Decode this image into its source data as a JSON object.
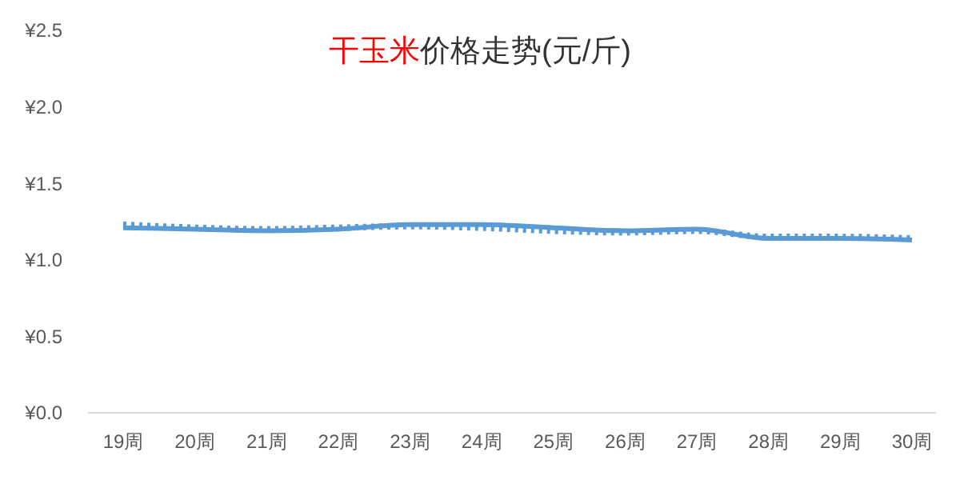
{
  "chart_data": {
    "type": "line",
    "title": "干玉米价格走势(元/斤)",
    "categories": [
      "19周",
      "20周",
      "21周",
      "22周",
      "23周",
      "24周",
      "25周",
      "26周",
      "27周",
      "28周",
      "29周",
      "30周"
    ],
    "series": [
      {
        "color": "#5b9bd5",
        "line_style": "solid",
        "values": [
          1.21,
          1.2,
          1.19,
          1.2,
          1.23,
          1.23,
          1.21,
          1.19,
          1.2,
          1.14,
          1.14,
          1.13
        ]
      },
      {
        "color": "#5b9bd5",
        "line_style": "dotted",
        "values": [
          1.23,
          1.21,
          1.2,
          1.21,
          1.22,
          1.21,
          1.19,
          1.18,
          1.19,
          1.15,
          1.15,
          1.14
        ]
      }
    ],
    "ylim": [
      0,
      2.5
    ],
    "yticks": [
      {
        "value": 0,
        "label": "¥0.0"
      },
      {
        "value": 0.5,
        "label": "¥0.5"
      },
      {
        "value": 1,
        "label": "¥1.0"
      },
      {
        "value": 1.5,
        "label": "¥1.5"
      },
      {
        "value": 2,
        "label": "¥2.0"
      },
      {
        "value": 2.5,
        "label": "¥2.5"
      }
    ],
    "grid": false
  }
}
